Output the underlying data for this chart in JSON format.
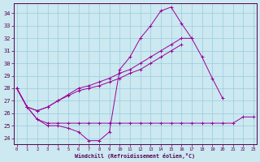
{
  "xlabel": "Windchill (Refroidissement éolien,°C)",
  "bg_color": "#cce8f0",
  "grid_color": "#99cce0",
  "line_color": "#990099",
  "x_ticks": [
    0,
    1,
    2,
    3,
    4,
    5,
    6,
    7,
    8,
    9,
    10,
    11,
    12,
    13,
    14,
    15,
    16,
    17,
    18,
    19,
    20,
    21,
    22,
    23
  ],
  "y_ticks": [
    24,
    25,
    26,
    27,
    28,
    29,
    30,
    31,
    32,
    33,
    34
  ],
  "ylim": [
    23.5,
    34.8
  ],
  "xlim": [
    -0.3,
    23.3
  ],
  "series1": [
    28.0,
    26.5,
    25.5,
    25.0,
    25.0,
    24.8,
    24.5,
    23.8,
    23.8,
    24.5,
    29.5,
    30.5,
    32.0,
    33.0,
    34.2,
    34.5,
    33.2,
    32.0,
    null,
    null,
    null,
    null,
    null,
    null
  ],
  "series2": [
    28.0,
    26.5,
    25.5,
    25.2,
    25.2,
    25.2,
    25.2,
    25.2,
    25.2,
    25.2,
    25.2,
    25.2,
    25.2,
    25.2,
    25.2,
    25.2,
    25.2,
    25.2,
    25.2,
    25.2,
    25.2,
    25.2,
    25.7,
    25.7
  ],
  "series3": [
    28.0,
    26.5,
    26.2,
    26.5,
    27.0,
    27.5,
    28.0,
    28.2,
    28.5,
    28.8,
    29.2,
    29.5,
    30.0,
    30.5,
    31.0,
    31.5,
    32.0,
    32.0,
    30.5,
    28.8,
    27.2,
    null,
    null,
    null
  ],
  "series4": [
    28.0,
    26.5,
    26.2,
    26.5,
    27.0,
    27.4,
    27.8,
    28.0,
    28.2,
    28.5,
    28.8,
    29.2,
    29.5,
    30.0,
    30.5,
    31.0,
    31.5,
    null,
    null,
    null,
    null,
    null,
    null,
    null
  ]
}
